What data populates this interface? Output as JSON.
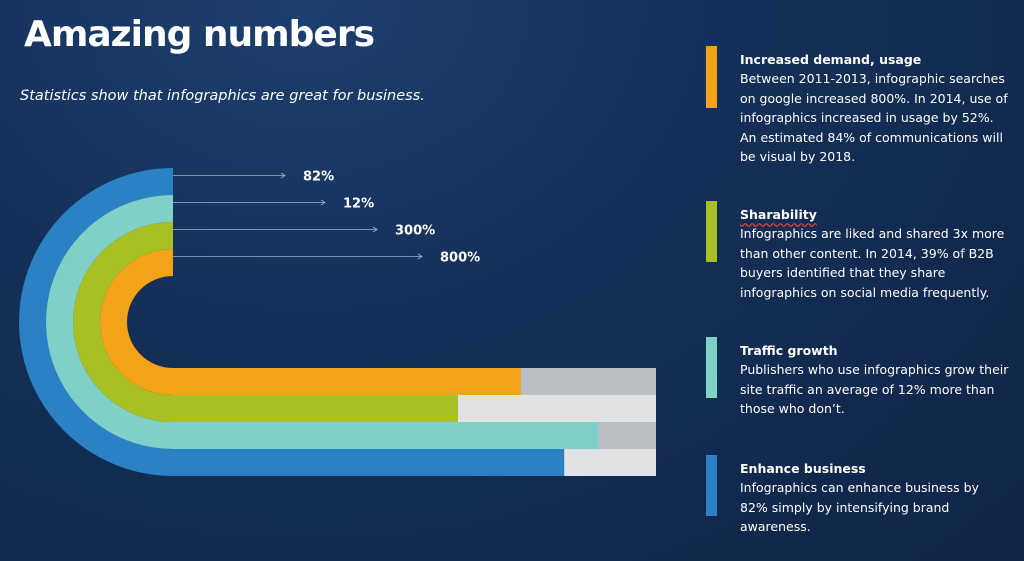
{
  "header": {
    "title": "Amazing numbers",
    "subtitle": "Statistics show that infographics are great for business."
  },
  "stats": [
    {
      "title": "Increased demand, usage",
      "body": "Between 2011-2013, infographic searches on google increased 800%. In 2014, use of infographics increased in usage by 52%. An estimated 84% of communications will be visual by 2018.",
      "color": "#f4a217"
    },
    {
      "title": "Sharability",
      "body": "Infographics are liked and shared 3x more than other content. In 2014, 39% of B2B buyers identified that they share infographics on social media frequently.",
      "color": "#a8c023"
    },
    {
      "title": "Traffic growth",
      "body": "Publishers who use infographics grow their site traffic an average of 12% more than those who don’t.",
      "color": "#7fd0c7"
    },
    {
      "title": "Enhance business",
      "body": "Infographics can enhance business by 82% simply by intensifying brand awareness.",
      "color": "#2a82c4"
    }
  ],
  "chart_data": {
    "type": "bar",
    "categories": [
      "Increased demand, usage",
      "Sharability",
      "Traffic growth",
      "Enhance business"
    ],
    "labels": [
      "800%",
      "300%",
      "12%",
      "82%"
    ],
    "values": [
      800,
      300,
      12,
      82
    ],
    "fill_fraction": [
      0.72,
      0.59,
      0.88,
      0.81
    ],
    "colors": [
      "#f4a217",
      "#a8c023",
      "#7fd0c7",
      "#2a82c4"
    ],
    "track_colors": [
      "#babfc4",
      "#e0e2e4",
      "#babfc4",
      "#e0e2e4"
    ],
    "style": "nested semicircular bars",
    "legend": "right"
  }
}
